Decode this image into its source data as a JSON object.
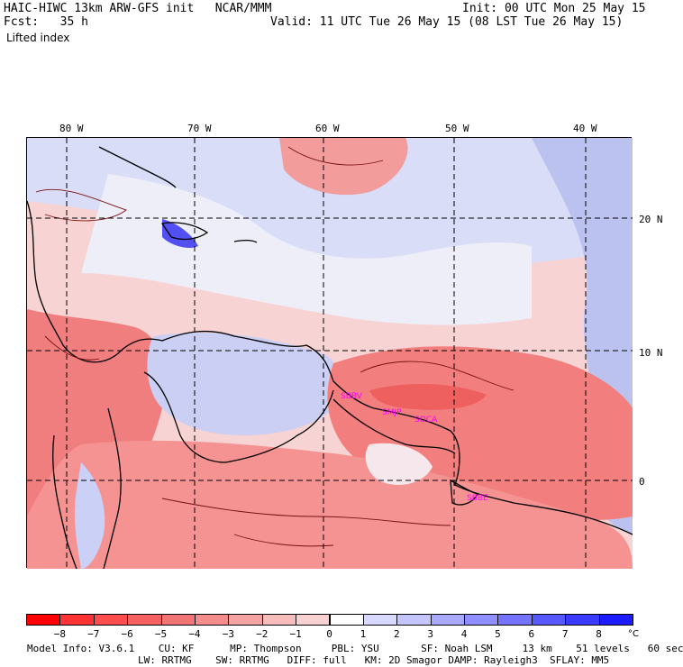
{
  "header": {
    "left_line1": "HAIC-HIWC 13km ARW-GFS init   NCAR/MMM",
    "right_line1": "Init: 00 UTC Mon 25 May 15",
    "left_line2": "Fcst:   35 h",
    "right_line2": "Valid: 11 UTC Tue 26 May 15 (08 LST Tue 26 May 15)",
    "variable": "Lifted index"
  },
  "map": {
    "longitude_labels": [
      "80 W",
      "70 W",
      "60 W",
      "50 W",
      "40 W"
    ],
    "latitude_labels": [
      "20 N",
      "10 N",
      "0"
    ],
    "stations": [
      "SBBV",
      "SMJP",
      "SOCA",
      "SBBE"
    ],
    "colors": {
      "ocean_background": "#f2d8de",
      "frame": "#000000",
      "grid": "#000000",
      "coast": "#000000",
      "station": "#ff00ff"
    }
  },
  "colorbar": {
    "unit": "°C",
    "tick_labels": [
      "−8",
      "−7",
      "−6",
      "−5",
      "−4",
      "−3",
      "−2",
      "−1",
      "0",
      "1",
      "2",
      "3",
      "4",
      "5",
      "6",
      "7",
      "8"
    ],
    "colors": [
      "#ff0000",
      "#ff3333",
      "#ff4c4c",
      "#f56060",
      "#f27474",
      "#f58c8c",
      "#f5a3a3",
      "#f7bcbc",
      "#f8d2d2",
      "#ffffff",
      "#d9d9ff",
      "#c4c4ff",
      "#a9a9ff",
      "#8f8fff",
      "#7474ff",
      "#5858ff",
      "#3b3bff",
      "#1c1cff"
    ]
  },
  "footer": {
    "line1": "Model Info: V3.6.1    CU: KF      MP: Thompson     PBL: YSU       SF: Noah LSM     13 km    51 levels   60 sec",
    "line2": "LW: RRTMG    SW: RRTMG   DIFF: full   KM: 2D Smagor DAMP: Rayleigh3  SFLAY: MM5"
  }
}
